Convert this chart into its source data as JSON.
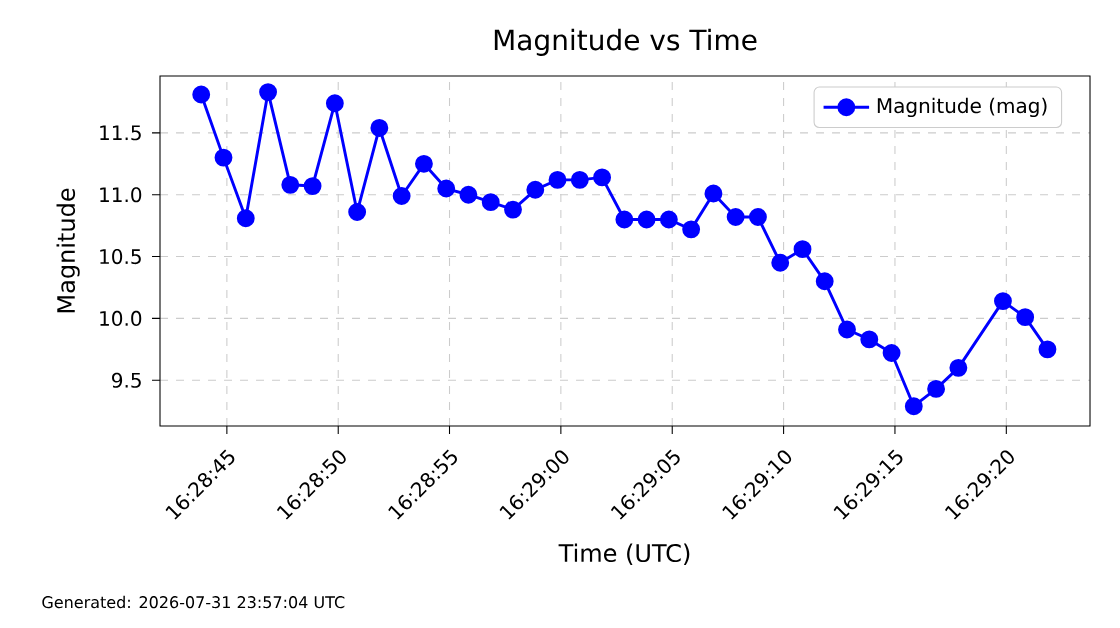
{
  "chart_data": {
    "type": "line",
    "title": "Magnitude vs Time",
    "xlabel": "Time (UTC)",
    "ylabel": "Magnitude",
    "annotations": [
      "Generated: 2026-07-31 23:57:04 UTC"
    ],
    "x": [
      16.478847,
      16.479125,
      16.479403,
      16.479681,
      16.479958,
      16.480236,
      16.480514,
      16.480792,
      16.481069,
      16.481347,
      16.481625,
      16.481903,
      16.48218,
      16.482458,
      16.482736,
      16.483014,
      16.483291,
      16.483569,
      16.483847,
      16.484125,
      16.484402,
      16.48468,
      16.484958,
      16.485236,
      16.485513,
      16.485791,
      16.486069,
      16.486347,
      16.486624,
      16.486902,
      16.48718,
      16.487458,
      16.487735,
      16.488013,
      16.488291,
      16.488847,
      16.489124,
      16.489402
    ],
    "series": [
      {
        "name": "Magnitude (mag)",
        "color": "#0000ff",
        "values": [
          11.81,
          11.3,
          10.81,
          11.83,
          11.08,
          11.07,
          11.74,
          10.86,
          11.54,
          10.99,
          11.25,
          11.05,
          11.0,
          10.94,
          10.88,
          11.04,
          11.12,
          11.12,
          11.14,
          10.8,
          10.8,
          10.8,
          10.72,
          11.01,
          10.82,
          10.82,
          10.45,
          10.56,
          10.3,
          9.91,
          9.83,
          9.72,
          9.29,
          9.43,
          9.6,
          10.14,
          10.01,
          9.75
        ]
      }
    ],
    "xlim": [
      16.478333,
      16.489933
    ],
    "ylim": [
      9.13,
      11.96
    ],
    "xticks": [
      {
        "value": 16.479167,
        "label": "16:28:45"
      },
      {
        "value": 16.480556,
        "label": "16:28:50"
      },
      {
        "value": 16.481944,
        "label": "16:28:55"
      },
      {
        "value": 16.483333,
        "label": "16:29:00"
      },
      {
        "value": 16.484722,
        "label": "16:29:05"
      },
      {
        "value": 16.486111,
        "label": "16:29:10"
      },
      {
        "value": 16.4875,
        "label": "16:29:15"
      },
      {
        "value": 16.488889,
        "label": "16:29:20"
      }
    ],
    "yticks": [
      9.5,
      {
        "value": 10,
        "label": "10.0"
      },
      10.5,
      {
        "value": 11,
        "label": "11.0"
      },
      11.5
    ],
    "grid": true,
    "legend": "top right",
    "marker": "circle",
    "line_style": "solid"
  }
}
